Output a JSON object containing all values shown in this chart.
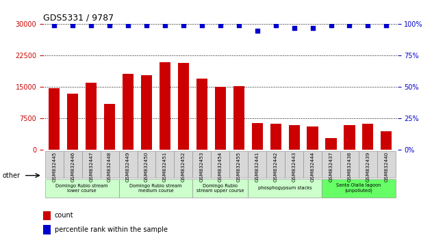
{
  "title": "GDS5331 / 9787",
  "samples": [
    "GSM832445",
    "GSM832446",
    "GSM832447",
    "GSM832448",
    "GSM832449",
    "GSM832450",
    "GSM832451",
    "GSM832452",
    "GSM832453",
    "GSM832454",
    "GSM832455",
    "GSM832441",
    "GSM832442",
    "GSM832443",
    "GSM832444",
    "GSM832437",
    "GSM832438",
    "GSM832439",
    "GSM832440"
  ],
  "counts": [
    14800,
    13500,
    16000,
    11000,
    18200,
    17800,
    21000,
    20800,
    17000,
    15000,
    15300,
    6500,
    6200,
    5900,
    5700,
    2800,
    5900,
    6200,
    4500
  ],
  "percentiles": [
    99,
    99,
    99,
    99,
    99,
    99,
    99,
    99,
    99,
    99,
    99,
    95,
    99,
    97,
    97,
    99,
    99,
    99,
    99
  ],
  "bar_color": "#cc0000",
  "dot_color": "#0000cc",
  "ylim_left": [
    0,
    30000
  ],
  "ylim_right": [
    0,
    100
  ],
  "yticks_left": [
    0,
    7500,
    15000,
    22500,
    30000
  ],
  "yticks_right": [
    0,
    25,
    50,
    75,
    100
  ],
  "groups": [
    {
      "label": "Domingo Rubio stream\nlower course",
      "start": 0,
      "end": 3,
      "color": "#ccffcc"
    },
    {
      "label": "Domingo Rubio stream\nmedium course",
      "start": 4,
      "end": 7,
      "color": "#ccffcc"
    },
    {
      "label": "Domingo Rubio\nstream upper course",
      "start": 8,
      "end": 10,
      "color": "#ccffcc"
    },
    {
      "label": "phosphogypsum stacks",
      "start": 11,
      "end": 14,
      "color": "#ccffcc"
    },
    {
      "label": "Santa Olalla lagoon\n(unpolluted)",
      "start": 15,
      "end": 18,
      "color": "#66ff66"
    }
  ],
  "legend_count_label": "count",
  "legend_pct_label": "percentile rank within the sample",
  "other_label": "other",
  "background_color": "#ffffff",
  "title_color": "#000000",
  "left_axis_color": "#cc0000",
  "right_axis_color": "#0000cc"
}
